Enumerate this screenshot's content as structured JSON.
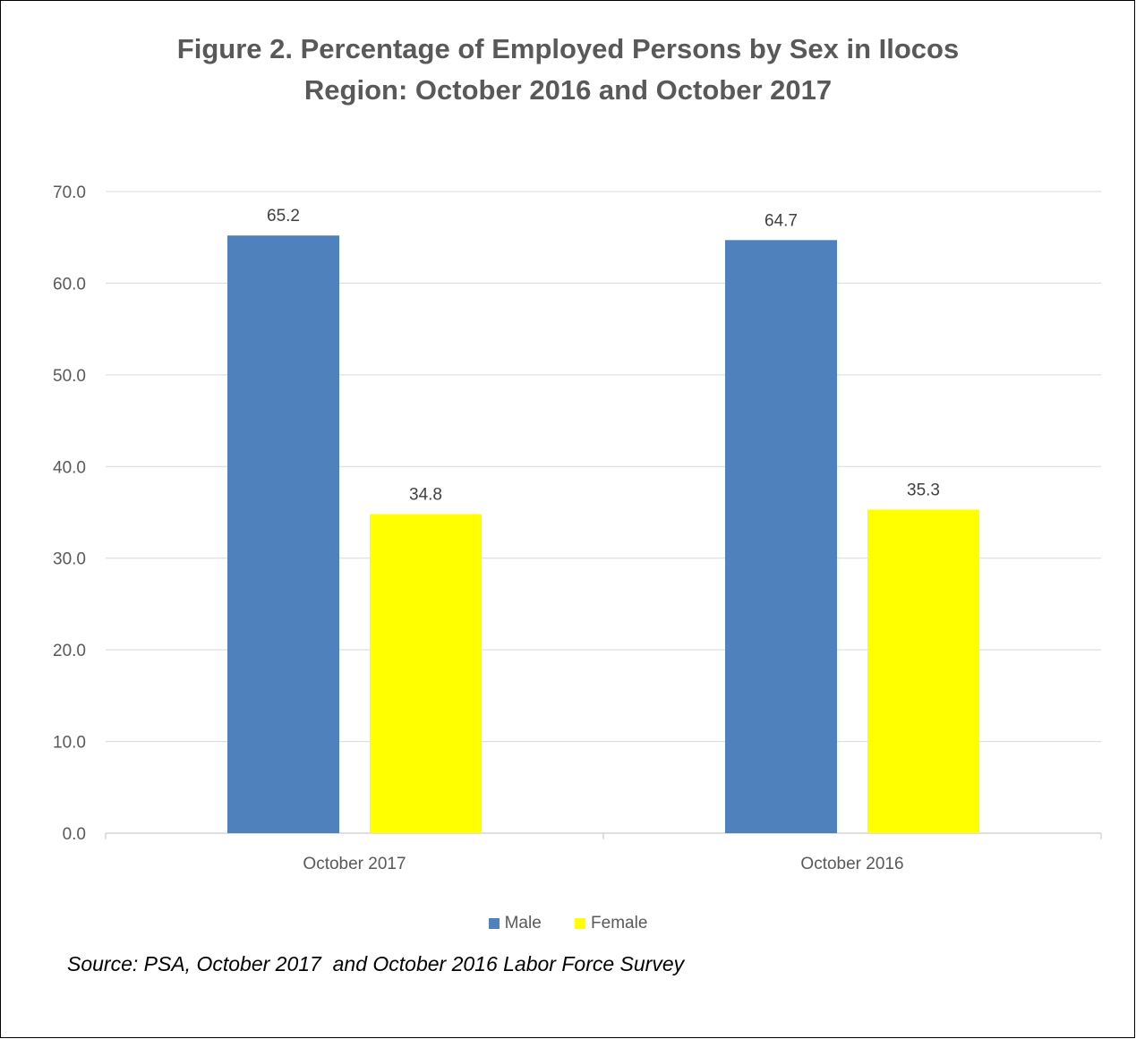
{
  "chart_data": {
    "type": "bar",
    "title_line1": "Figure 2. Percentage of Employed Persons by Sex in Ilocos",
    "title_line2": "Region: October 2016 and October 2017",
    "categories": [
      "October 2017",
      "October 2016"
    ],
    "series": [
      {
        "name": "Male",
        "color": "#4F81BD",
        "values": [
          65.2,
          64.7
        ]
      },
      {
        "name": "Female",
        "color": "#FFFF00",
        "values": [
          34.8,
          35.3
        ]
      }
    ],
    "ylim": [
      0,
      70
    ],
    "yticks": [
      "0.0",
      "10.0",
      "20.0",
      "30.0",
      "40.0",
      "50.0",
      "60.0",
      "70.0"
    ],
    "grid": true,
    "legend_position": "bottom",
    "xlabel": "",
    "ylabel": ""
  },
  "source_note": "Source: PSA, October 2017  and October 2016 Labor Force Survey"
}
